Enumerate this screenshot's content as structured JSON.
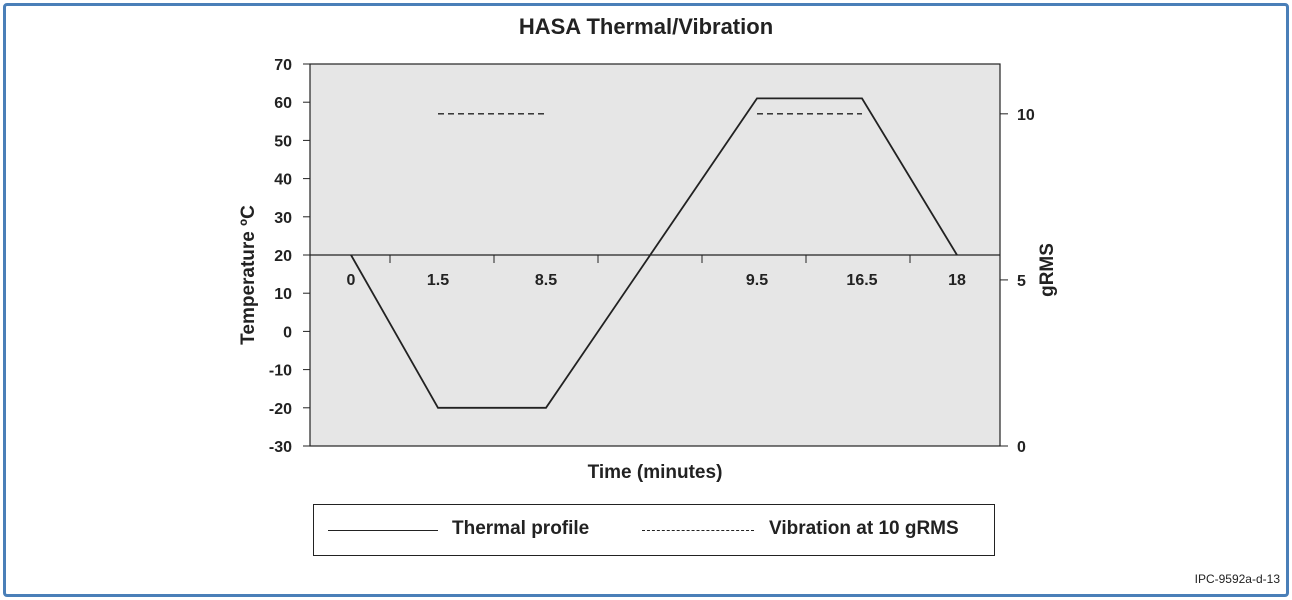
{
  "chart_data": {
    "type": "line",
    "title": "HASA Thermal/Vibration",
    "xlabel": "Time (minutes)",
    "ylabel_left": "Temperature ºC",
    "ylabel_right": "gRMS",
    "ylim_left": [
      -30,
      70
    ],
    "yticks_left": [
      70,
      60,
      50,
      40,
      30,
      20,
      10,
      0,
      -10,
      -20,
      -30
    ],
    "ylim_right": [
      0,
      11.5
    ],
    "yticks_right": [
      10,
      5,
      0
    ],
    "x_tick_labels": [
      "0",
      "1.5",
      "8.5",
      "9.5",
      "16.5",
      "18"
    ],
    "series": [
      {
        "name": "Thermal profile",
        "style": "solid",
        "points": [
          {
            "x": "0",
            "y": 20
          },
          {
            "x": "1.5",
            "y": -20
          },
          {
            "x": "8.5",
            "y": -20
          },
          {
            "x": "9.5",
            "y": 61
          },
          {
            "x": "16.5",
            "y": 61
          },
          {
            "x": "18",
            "y": 20
          }
        ]
      },
      {
        "name": "Vibration at 10 gRMS",
        "style": "dashed",
        "axis": "right",
        "segments": [
          {
            "from": "1.5",
            "to": "8.5",
            "y": 10
          },
          {
            "from": "9.5",
            "to": "16.5",
            "y": 10
          }
        ]
      }
    ],
    "grid": false,
    "background": "#e6e6e6",
    "legend_position": "bottom"
  },
  "legend": {
    "thermal_label": "Thermal profile",
    "vibration_label": "Vibration at 10 gRMS"
  },
  "figure_id": "IPC-9592a-d-13",
  "colors": {
    "frame_border": "#4a7fb8",
    "plot_background": "#e6e6e6",
    "line": "#222222"
  }
}
